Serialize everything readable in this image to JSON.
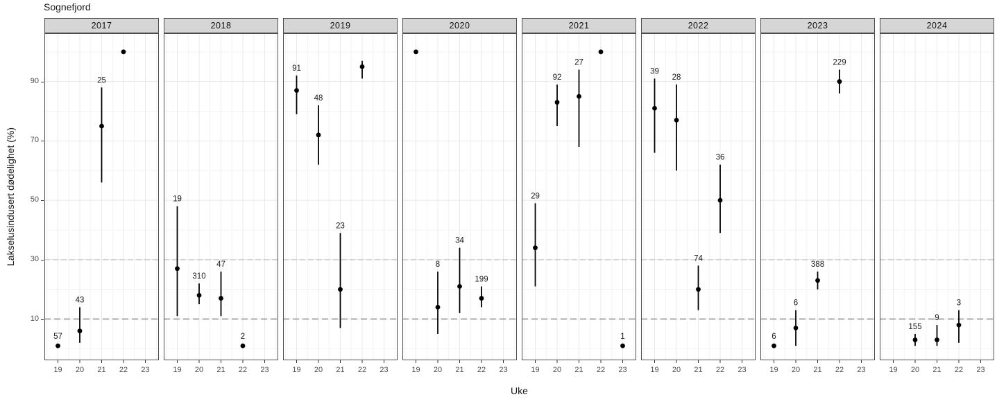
{
  "title": "Sognefjord",
  "axes": {
    "x_label": "Uke",
    "y_label": "Lakselusindusert dødelighet (%)",
    "x_ticks": [
      19,
      20,
      21,
      22,
      23
    ],
    "y_ticks": [
      10,
      30,
      50,
      70,
      90
    ],
    "y_minor": [
      0,
      20,
      40,
      60,
      80,
      100
    ],
    "threshold_lines": [
      {
        "y": 30,
        "style": "dashed-thin"
      },
      {
        "y": 10,
        "style": "dashed-thick"
      }
    ]
  },
  "colors": {
    "point": "#000000",
    "errorbar": "#000000",
    "label_text": "#1a1a1a",
    "strip_fill": "#d6d6d6",
    "panel_border": "#4d4d4d",
    "grid_major": "#e8e8e8",
    "grid_minor": "#f3f3f3",
    "threshold_thin": "#bcbcbc",
    "threshold_thick": "#aaaaaa",
    "axis_text": "#4d4d4d",
    "tick_mark": "#333333"
  },
  "chart_data": {
    "type": "scatter",
    "title": "Sognefjord",
    "xlabel": "Uke",
    "ylabel": "Lakselusindusert dødelighet (%)",
    "ylim": [
      0,
      100
    ],
    "legend": "none",
    "facets": [
      {
        "year": "2017",
        "points": [
          {
            "week": 19,
            "value": 1,
            "label": "57"
          },
          {
            "week": 20,
            "value": 6,
            "low": 2,
            "high": 14,
            "label": "43"
          },
          {
            "week": 21,
            "value": 75,
            "low": 56,
            "high": 88,
            "label": "25"
          },
          {
            "week": 22,
            "value": 100
          }
        ]
      },
      {
        "year": "2018",
        "points": [
          {
            "week": 19,
            "value": 27,
            "low": 11,
            "high": 48,
            "label": "19"
          },
          {
            "week": 20,
            "value": 18,
            "low": 15,
            "high": 22,
            "label": "310"
          },
          {
            "week": 21,
            "value": 17,
            "low": 11,
            "high": 26,
            "label": "47"
          },
          {
            "week": 22,
            "value": 1,
            "label": "2"
          }
        ]
      },
      {
        "year": "2019",
        "points": [
          {
            "week": 19,
            "value": 87,
            "low": 79,
            "high": 92,
            "label": "91"
          },
          {
            "week": 20,
            "value": 72,
            "low": 62,
            "high": 82,
            "label": "48"
          },
          {
            "week": 21,
            "value": 20,
            "low": 7,
            "high": 39,
            "label": "23"
          },
          {
            "week": 22,
            "value": 95,
            "low": 91,
            "high": 97
          }
        ]
      },
      {
        "year": "2020",
        "points": [
          {
            "week": 19,
            "value": 100
          },
          {
            "week": 20,
            "value": 14,
            "low": 5,
            "high": 26,
            "label": "8"
          },
          {
            "week": 21,
            "value": 21,
            "low": 12,
            "high": 34,
            "label": "34"
          },
          {
            "week": 22,
            "value": 17,
            "low": 14,
            "high": 21,
            "label": "199"
          }
        ]
      },
      {
        "year": "2021",
        "points": [
          {
            "week": 19,
            "value": 34,
            "low": 21,
            "high": 49,
            "label": "29"
          },
          {
            "week": 20,
            "value": 83,
            "low": 75,
            "high": 89,
            "label": "92"
          },
          {
            "week": 21,
            "value": 85,
            "low": 68,
            "high": 94,
            "label": "27"
          },
          {
            "week": 22,
            "value": 100
          },
          {
            "week": 23,
            "value": 1,
            "label": "1"
          }
        ]
      },
      {
        "year": "2022",
        "points": [
          {
            "week": 19,
            "value": 81,
            "low": 66,
            "high": 91,
            "label": "39"
          },
          {
            "week": 20,
            "value": 77,
            "low": 60,
            "high": 89,
            "label": "28"
          },
          {
            "week": 21,
            "value": 20,
            "low": 13,
            "high": 28,
            "label": "74"
          },
          {
            "week": 22,
            "value": 50,
            "low": 39,
            "high": 62,
            "label": "36"
          }
        ]
      },
      {
        "year": "2023",
        "points": [
          {
            "week": 19,
            "value": 1,
            "label": "6"
          },
          {
            "week": 20,
            "value": 7,
            "low": 1,
            "high": 13,
            "label": "6"
          },
          {
            "week": 21,
            "value": 23,
            "low": 20,
            "high": 26,
            "label": "388"
          },
          {
            "week": 22,
            "value": 90,
            "low": 86,
            "high": 94,
            "label": "229"
          }
        ]
      },
      {
        "year": "2024",
        "points": [
          {
            "week": 20,
            "value": 3,
            "low": 1,
            "high": 5,
            "label": "155"
          },
          {
            "week": 21,
            "value": 3,
            "low": 1,
            "high": 8,
            "label": "9"
          },
          {
            "week": 22,
            "value": 8,
            "low": 2,
            "high": 13,
            "label": "3"
          }
        ]
      }
    ]
  }
}
